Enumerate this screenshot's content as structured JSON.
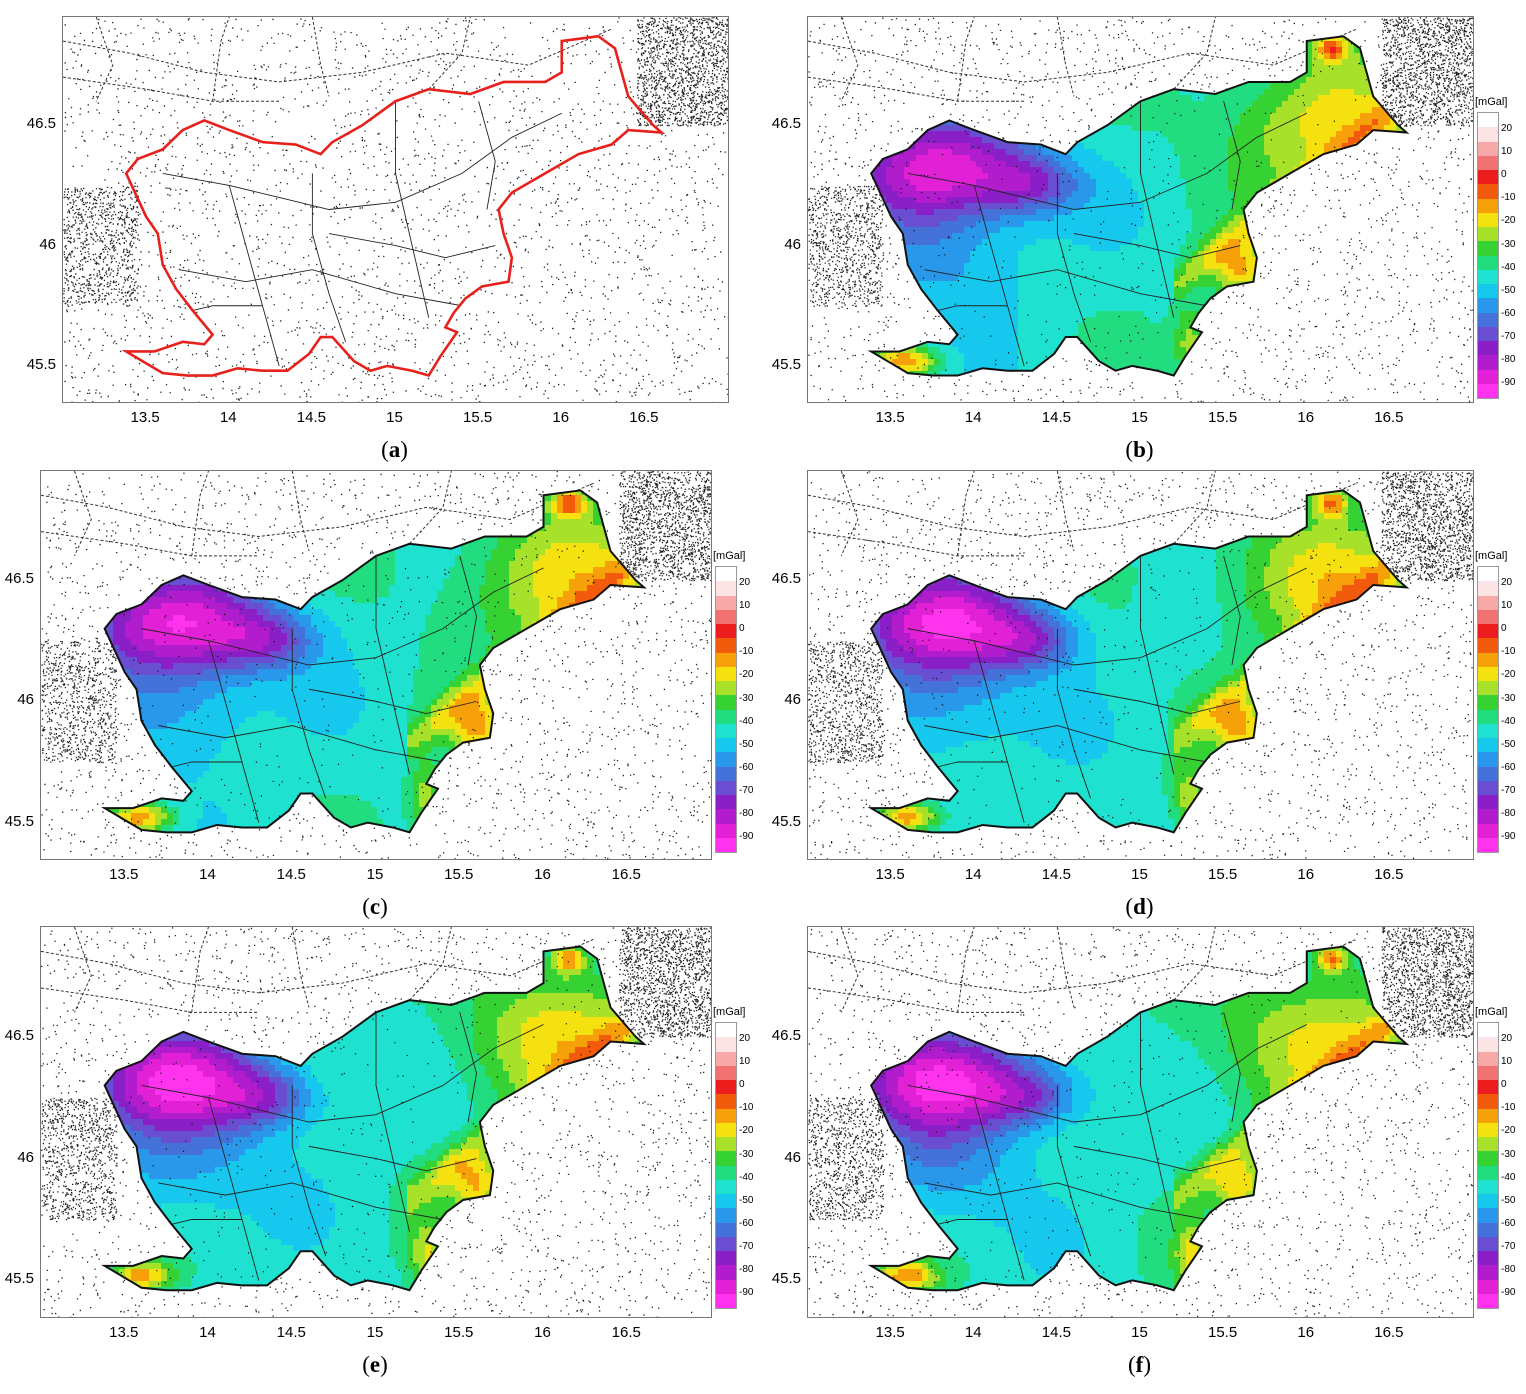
{
  "colorbar": {
    "unit": "[mGal]",
    "ticks": [
      "20",
      "10",
      "0",
      "-10",
      "-20",
      "-30",
      "-40",
      "-50",
      "-60",
      "-70",
      "-80",
      "-90"
    ],
    "colors": [
      "#fde4e4",
      "#f7a9a9",
      "#f07272",
      "#ee1d1d",
      "#f25a0c",
      "#f7a10a",
      "#f5e10f",
      "#a8e12a",
      "#36d233",
      "#22dd80",
      "#1ee1cf",
      "#17c8ee",
      "#2a98ea",
      "#4472d8",
      "#6a4ed2",
      "#8a1fc8",
      "#b11ccc",
      "#e221d6",
      "#ff33ee"
    ]
  },
  "axes": {
    "xticks": [
      "13.5",
      "14",
      "14.5",
      "15",
      "15.5",
      "16",
      "16.5"
    ],
    "yticks": [
      "46.5",
      "46",
      "45.5"
    ]
  },
  "panels": [
    {
      "id": "a",
      "caption": "a",
      "style": "outline"
    },
    {
      "id": "b",
      "caption": "b",
      "style": "filled"
    },
    {
      "id": "c",
      "caption": "c",
      "style": "filled"
    },
    {
      "id": "d",
      "caption": "d",
      "style": "filled"
    },
    {
      "id": "e",
      "caption": "e",
      "style": "filled"
    },
    {
      "id": "f",
      "caption": "f",
      "style": "filled"
    }
  ],
  "colors": {
    "border_outline": "#e8201c",
    "border_filled": "#111111"
  }
}
